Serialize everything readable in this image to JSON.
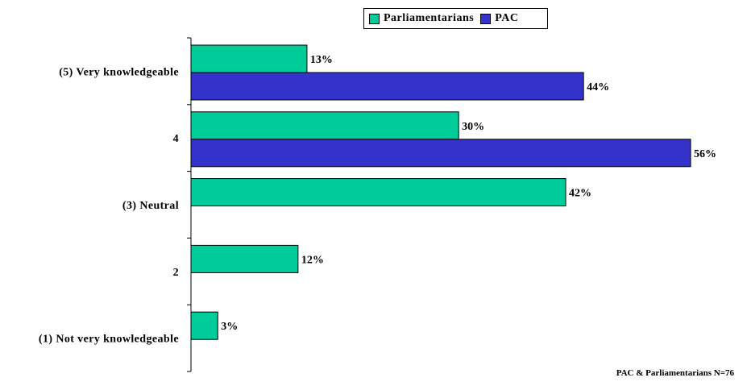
{
  "chart_data": {
    "type": "bar",
    "orientation": "horizontal",
    "categories": [
      "(5) Very knowledgeable",
      "4",
      "(3) Neutral",
      "2",
      "(1) Not very knowledgeable"
    ],
    "series": [
      {
        "name": "Parliamentarians",
        "color": "#00CC99",
        "values": [
          13,
          30,
          42,
          12,
          3
        ]
      },
      {
        "name": "PAC",
        "color": "#3333CC",
        "values": [
          44,
          56,
          null,
          null,
          null
        ]
      }
    ],
    "value_suffix": "%",
    "xlim": [
      0,
      60
    ],
    "grid": false,
    "legend_position": "top-center"
  },
  "footnote": "PAC & Parliamentarians N=76"
}
